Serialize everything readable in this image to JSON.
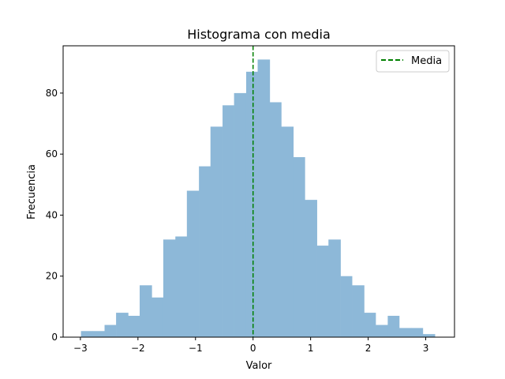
{
  "chart_data": {
    "type": "bar",
    "title": "Histograma con media",
    "xlabel": "Valor",
    "ylabel": "Frecuencia",
    "xlim": [
      -3.3,
      3.5
    ],
    "ylim": [
      0,
      95.5
    ],
    "xticks": [
      -3,
      -2,
      -1,
      0,
      1,
      2,
      3
    ],
    "yticks": [
      0,
      20,
      40,
      60,
      80
    ],
    "bin_edges": [
      -2.99,
      -2.79,
      -2.58,
      -2.38,
      -2.17,
      -1.97,
      -1.76,
      -1.56,
      -1.35,
      -1.15,
      -0.94,
      -0.74,
      -0.53,
      -0.33,
      -0.12,
      0.08,
      0.29,
      0.49,
      0.7,
      0.9,
      1.11,
      1.31,
      1.52,
      1.72,
      1.93,
      2.13,
      2.34,
      2.54,
      2.75,
      2.95,
      3.16
    ],
    "values": [
      2,
      2,
      4,
      8,
      7,
      17,
      13,
      32,
      33,
      48,
      56,
      69,
      76,
      80,
      87,
      91,
      77,
      69,
      59,
      45,
      30,
      32,
      20,
      17,
      8,
      4,
      7,
      3,
      3,
      1
    ],
    "bar_color": "#8db8d8",
    "mean": 0.0,
    "mean_line_color": "#008000",
    "legend": {
      "entries": [
        "Media"
      ],
      "placement": "top-right"
    },
    "grid": false
  }
}
